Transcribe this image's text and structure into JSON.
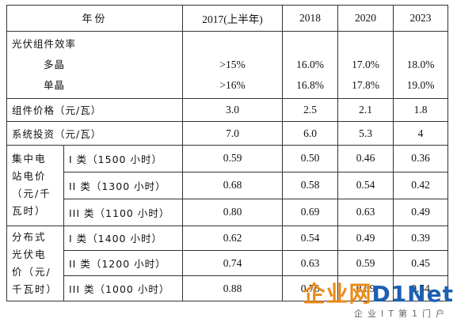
{
  "header": {
    "year_label": "年份",
    "years": [
      "2017(上半年)",
      "2018",
      "2020",
      "2023"
    ]
  },
  "efficiency": {
    "title": "光伏组件效率",
    "multi_label": "多晶",
    "mono_label": "单晶",
    "multi_values": [
      ">15%",
      "16.0%",
      "17.0%",
      "18.0%"
    ],
    "mono_values": [
      ">16%",
      "16.8%",
      "17.8%",
      "19.0%"
    ]
  },
  "module_price": {
    "label": "组件价格（元/瓦）",
    "values": [
      "3.0",
      "2.5",
      "2.1",
      "1.8"
    ]
  },
  "system_investment": {
    "label": "系统投资（元/瓦）",
    "values": [
      "7.0",
      "6.0",
      "5.3",
      "4"
    ]
  },
  "centralized": {
    "category": "集中电站电价（元/千瓦时）",
    "cat_lines": [
      "集中电",
      "站电价",
      "（元/千",
      "瓦时）"
    ],
    "rows": [
      {
        "label": "I 类（1500 小时）",
        "values": [
          "0.59",
          "0.50",
          "0.46",
          "0.36"
        ]
      },
      {
        "label": "II 类（1300 小时）",
        "values": [
          "0.68",
          "0.58",
          "0.54",
          "0.42"
        ]
      },
      {
        "label": "III 类（1100 小时）",
        "values": [
          "0.80",
          "0.69",
          "0.63",
          "0.49"
        ]
      }
    ]
  },
  "distributed": {
    "cat_lines": [
      "分布式",
      "光伏电",
      "价（元/",
      "千瓦时）"
    ],
    "rows": [
      {
        "label": "I 类（1400 小时）",
        "values": [
          "0.62",
          "0.54",
          "0.49",
          "0.39"
        ]
      },
      {
        "label": "II 类（1200 小时）",
        "values": [
          "0.74",
          "0.63",
          "0.59",
          "0.45"
        ]
      },
      {
        "label": "III 类（1000 小时）",
        "values": [
          "0.88",
          "0.76",
          "0.69",
          "0.54"
        ]
      }
    ]
  },
  "watermark": {
    "logo_cn": "企业网",
    "logo_en": "D1Net",
    "tagline": "企业IT第1门户"
  }
}
